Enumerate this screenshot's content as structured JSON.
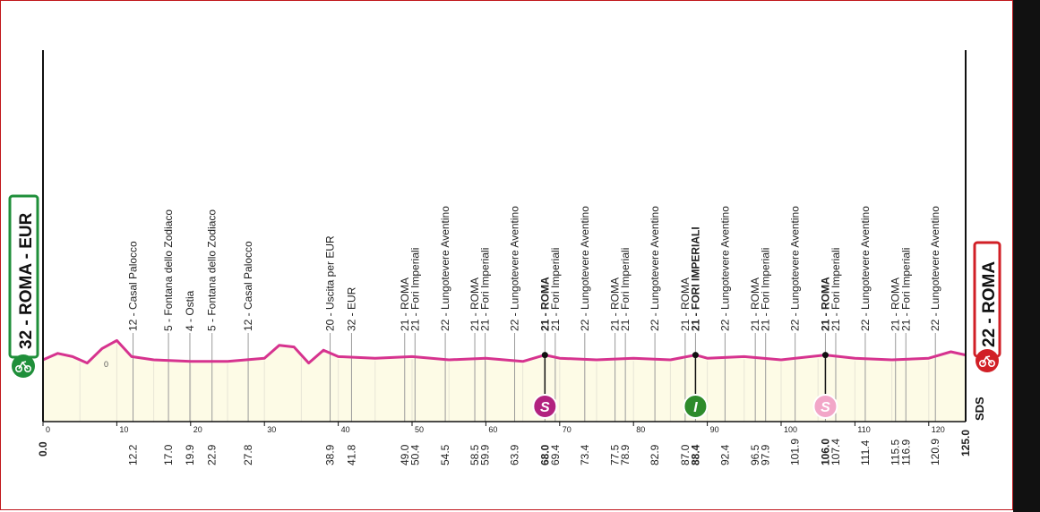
{
  "colors": {
    "profile_line": "#d6338f",
    "profile_fill": "#fdfbe6",
    "frame": "#c0161b",
    "start_badge": "#1f8f3a",
    "finish_badge": "#d11f26",
    "sprint_magenta": "#b2227f",
    "sprint_green": "#2e8b2b",
    "sprint_pink": "#f2a6c8"
  },
  "header": {
    "start_label": "32 - ROMA - EUR",
    "finish_label": "22 - ROMA",
    "start_icon": "cyclist-start-icon",
    "finish_icon": "cyclist-finish-icon",
    "brand": "SDS"
  },
  "chart_data": {
    "type": "area",
    "title": "",
    "xlabel": "",
    "ylabel": "",
    "xlim": [
      0,
      125
    ],
    "x_ticks": [
      0,
      10,
      20,
      30,
      40,
      50,
      60,
      70,
      80,
      90,
      100,
      110,
      120
    ],
    "baseline_label": "0",
    "elevation_profile": {
      "x": [
        0,
        2,
        4,
        6,
        8,
        10,
        12,
        15,
        20,
        25,
        30,
        32,
        34,
        36,
        38,
        40,
        45,
        50,
        55,
        60,
        65,
        68,
        70,
        75,
        80,
        85,
        88.4,
        90,
        95,
        100,
        106,
        110,
        115,
        120,
        123,
        125
      ],
      "y": [
        18,
        22,
        20,
        16,
        25,
        30,
        20,
        18,
        17,
        17,
        19,
        27,
        26,
        16,
        24,
        20,
        19,
        20,
        18,
        19,
        17,
        21,
        19,
        18,
        19,
        18,
        21,
        19,
        20,
        18,
        21,
        19,
        18,
        19,
        23,
        21
      ]
    },
    "points": [
      {
        "km": "0.0",
        "label": "",
        "bold": true
      },
      {
        "km": "12.2",
        "label": "12 - Casal Palocco",
        "bold": false
      },
      {
        "km": "17.0",
        "label": "5 - Fontana dello Zodiaco",
        "bold": false
      },
      {
        "km": "19.9",
        "label": "4 - Ostia",
        "bold": false
      },
      {
        "km": "22.9",
        "label": "5 - Fontana dello Zodiaco",
        "bold": false
      },
      {
        "km": "27.8",
        "label": "12 - Casal Palocco",
        "bold": false
      },
      {
        "km": "38.9",
        "label": "20 - Uscita per EUR",
        "bold": false
      },
      {
        "km": "41.8",
        "label": "32 - EUR",
        "bold": false
      },
      {
        "km": "49.0",
        "label": "21 - ROMA",
        "bold": false
      },
      {
        "km": "50.4",
        "label": "21 - Fori Imperiali",
        "bold": false
      },
      {
        "km": "54.5",
        "label": "22 - Lungotevere Aventino",
        "bold": false
      },
      {
        "km": "58.5",
        "label": "21 - ROMA",
        "bold": false
      },
      {
        "km": "59.9",
        "label": "21 - Fori Imperiali",
        "bold": false
      },
      {
        "km": "63.9",
        "label": "22 - Lungotevere Aventino",
        "bold": false
      },
      {
        "km": "68.0",
        "label": "21 - ROMA",
        "bold": true
      },
      {
        "km": "69.4",
        "label": "21 - Fori Imperiali",
        "bold": false
      },
      {
        "km": "73.4",
        "label": "22 - Lungotevere Aventino",
        "bold": false
      },
      {
        "km": "77.5",
        "label": "21 - ROMA",
        "bold": false
      },
      {
        "km": "78.9",
        "label": "21 - Fori Imperiali",
        "bold": false
      },
      {
        "km": "82.9",
        "label": "22 - Lungotevere Aventino",
        "bold": false
      },
      {
        "km": "87.0",
        "label": "21 - ROMA",
        "bold": false
      },
      {
        "km": "88.4",
        "label": "21 - FORI IMPERIALI",
        "bold": true
      },
      {
        "km": "92.4",
        "label": "22 - Lungotevere Aventino",
        "bold": false
      },
      {
        "km": "96.5",
        "label": "21 - ROMA",
        "bold": false
      },
      {
        "km": "97.9",
        "label": "21 - Fori Imperiali",
        "bold": false
      },
      {
        "km": "101.9",
        "label": "22 - Lungotevere Aventino",
        "bold": false
      },
      {
        "km": "106.0",
        "label": "21 - ROMA",
        "bold": true
      },
      {
        "km": "107.4",
        "label": "21 - Fori Imperiali",
        "bold": false
      },
      {
        "km": "111.4",
        "label": "22 - Lungotevere Aventino",
        "bold": false
      },
      {
        "km": "115.5",
        "label": "21 - ROMA",
        "bold": false
      },
      {
        "km": "116.9",
        "label": "21 - Fori Imperiali",
        "bold": false
      },
      {
        "km": "120.9",
        "label": "22 - Lungotevere Aventino",
        "bold": false
      },
      {
        "km": "125.0",
        "label": "",
        "bold": true
      }
    ],
    "sprints": [
      {
        "km": 68.0,
        "symbol": "S",
        "color": "#b2227f"
      },
      {
        "km": 88.4,
        "symbol": "I",
        "color": "#2e8b2b"
      },
      {
        "km": 106.0,
        "symbol": "S",
        "color": "#f2a6c8"
      }
    ]
  }
}
